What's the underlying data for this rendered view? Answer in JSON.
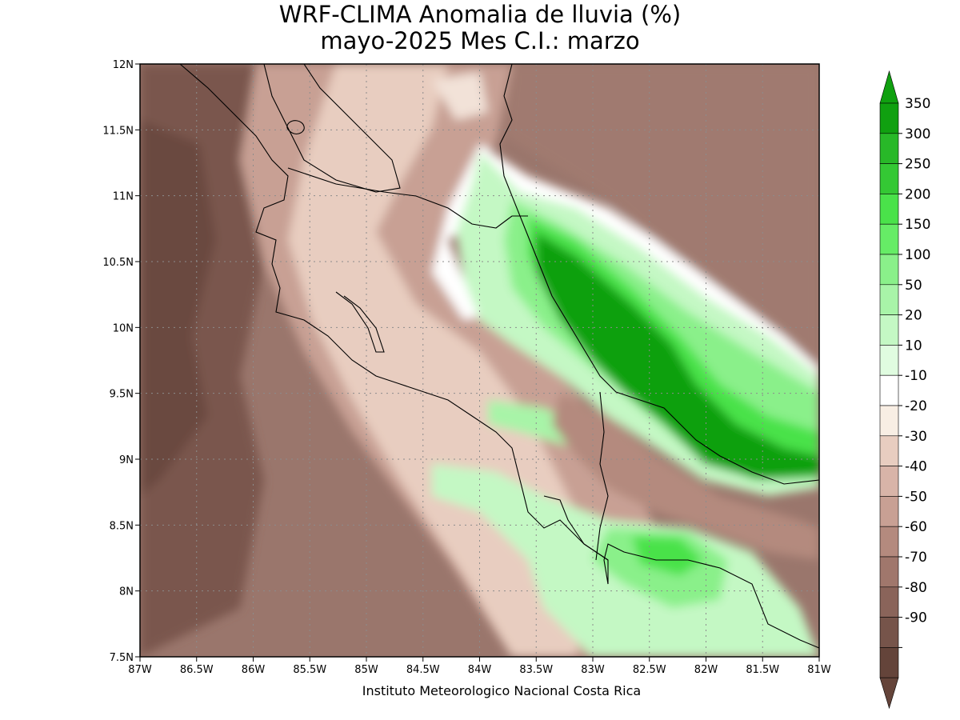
{
  "title": {
    "line1": "WRF-CLIMA Anomalia de lluvia (%)",
    "line2": "mayo-2025 Mes C.I.: marzo"
  },
  "credit": "Instituto Meteorologico Nacional Costa Rica",
  "axes": {
    "x_ticks": [
      {
        "value": -87,
        "label": "87W"
      },
      {
        "value": -86.5,
        "label": "86.5W"
      },
      {
        "value": -86,
        "label": "86W"
      },
      {
        "value": -85.5,
        "label": "85.5W"
      },
      {
        "value": -85,
        "label": "85W"
      },
      {
        "value": -84.5,
        "label": "84.5W"
      },
      {
        "value": -84,
        "label": "84W"
      },
      {
        "value": -83.5,
        "label": "83.5W"
      },
      {
        "value": -83,
        "label": "83W"
      },
      {
        "value": -82.5,
        "label": "82.5W"
      },
      {
        "value": -82,
        "label": "82W"
      },
      {
        "value": -81.5,
        "label": "81.5W"
      },
      {
        "value": -81,
        "label": "81W"
      }
    ],
    "y_ticks": [
      {
        "value": 12,
        "label": "12N"
      },
      {
        "value": 11.5,
        "label": "11.5N"
      },
      {
        "value": 11,
        "label": "11N"
      },
      {
        "value": 10.5,
        "label": "10.5N"
      },
      {
        "value": 10,
        "label": "10N"
      },
      {
        "value": 9.5,
        "label": "9.5N"
      },
      {
        "value": 9,
        "label": "9N"
      },
      {
        "value": 8.5,
        "label": "8.5N"
      },
      {
        "value": 8,
        "label": "8N"
      },
      {
        "value": 7.5,
        "label": "7.5N"
      }
    ],
    "lon_range": [
      -87,
      -81
    ],
    "lat_range": [
      7.5,
      12
    ]
  },
  "colorbar": {
    "bins": [
      {
        "color": "#10a010",
        "upper": "350"
      },
      {
        "color": "#28b828",
        "upper": "300"
      },
      {
        "color": "#34c834",
        "upper": "250"
      },
      {
        "color": "#4ae24a",
        "upper": "200"
      },
      {
        "color": "#66ec66",
        "upper": "150"
      },
      {
        "color": "#8af08a",
        "upper": "100"
      },
      {
        "color": "#a8f4a8",
        "upper": "50"
      },
      {
        "color": "#c4f8c4",
        "upper": "20"
      },
      {
        "color": "#e0fce0",
        "upper": "10"
      },
      {
        "color": "#ffffff",
        "upper": "-10"
      },
      {
        "color": "#f8eee4",
        "upper": "-20"
      },
      {
        "color": "#e8cdc0",
        "upper": "-30"
      },
      {
        "color": "#d8b4a8",
        "upper": "-40"
      },
      {
        "color": "#c8a094",
        "upper": "-50"
      },
      {
        "color": "#b48a7e",
        "upper": "-60"
      },
      {
        "color": "#a0776c",
        "upper": "-70"
      },
      {
        "color": "#8a645a",
        "upper": "-80"
      },
      {
        "color": "#76544a",
        "upper": "-90"
      },
      {
        "color": "#64443a",
        "upper": ""
      }
    ],
    "top_arrow_color": "#10a010",
    "bottom_arrow_color": "#64443a"
  },
  "field_notes": "anomaly field rendered as contour-fill blobs"
}
